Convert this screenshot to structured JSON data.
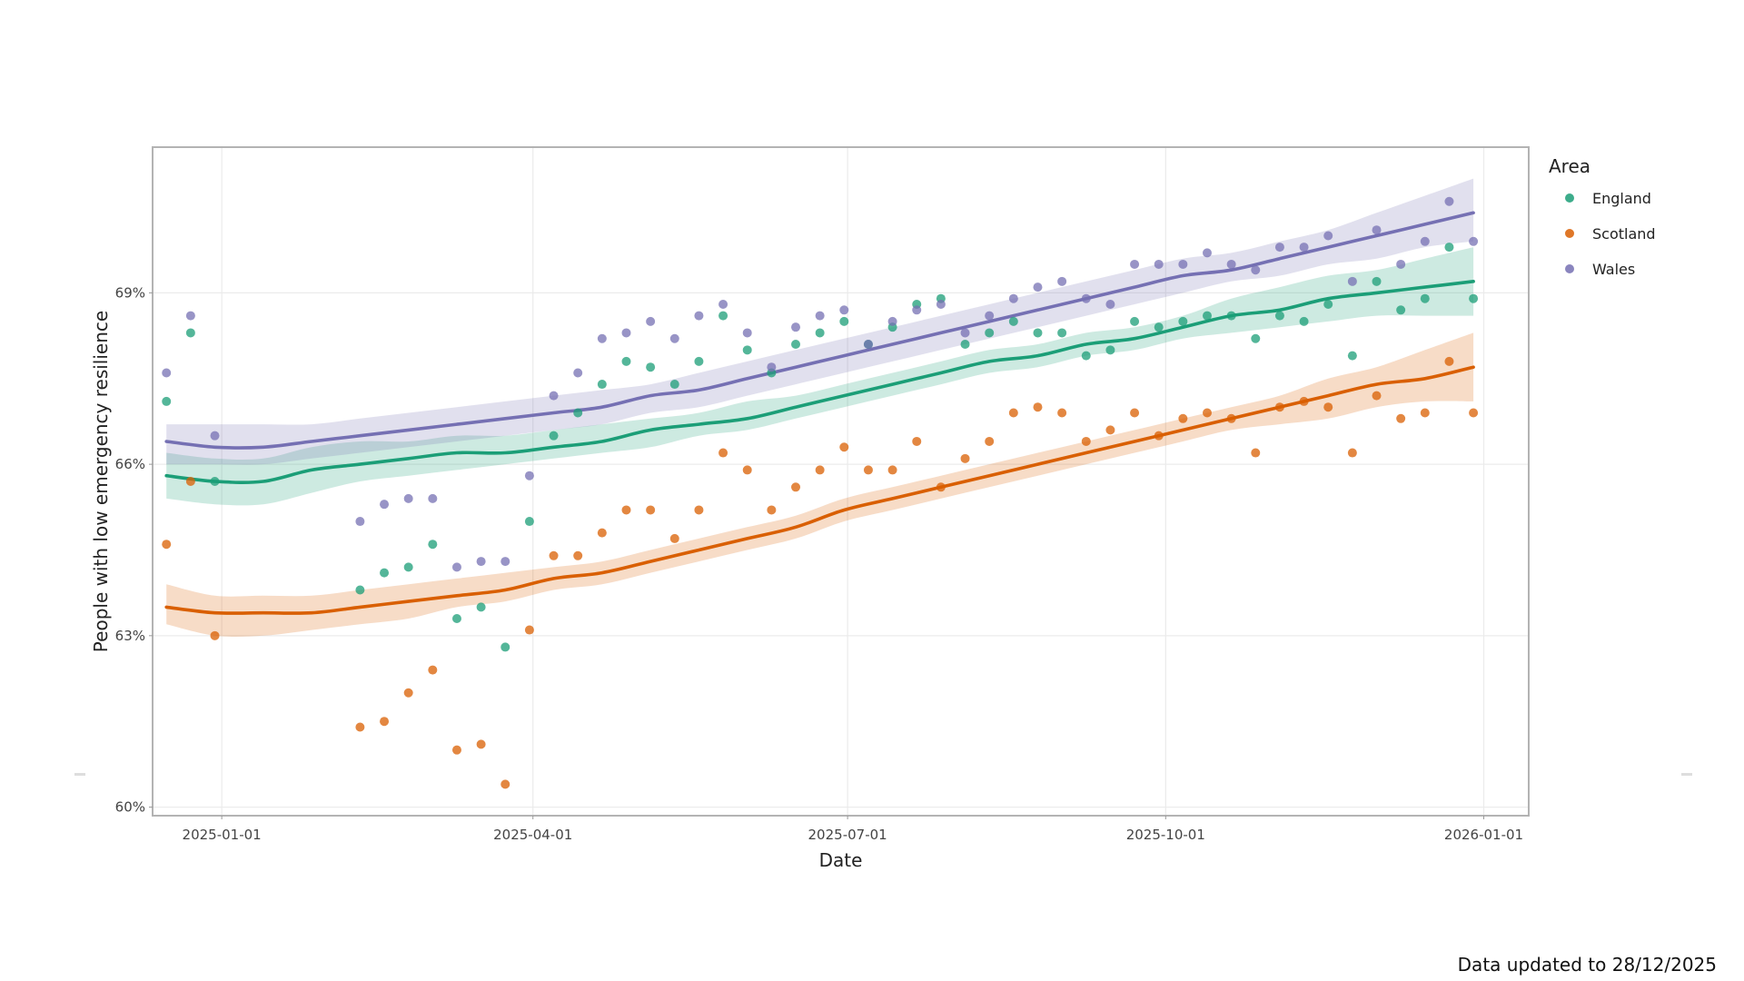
{
  "footnote": "Data updated to 28/12/2025",
  "chart_data": {
    "type": "scatter",
    "xlabel": "Date",
    "ylabel": "People with low emergency resilience",
    "legend": {
      "title": "Area",
      "position": "right"
    },
    "grid": true,
    "x_range": [
      "2024-12-12",
      "2026-01-14"
    ],
    "y_range": [
      59.85,
      71.55
    ],
    "y_ticks": [
      60,
      63,
      66,
      69
    ],
    "y_tick_labels": [
      "60%",
      "63%",
      "66%",
      "69%"
    ],
    "x_ticks": [
      "2025-01-01",
      "2025-04-01",
      "2025-07-01",
      "2025-10-01",
      "2026-01-01"
    ],
    "x_tick_labels": [
      "2025-01-01",
      "2025-04-01",
      "2025-07-01",
      "2025-10-01",
      "2026-01-01"
    ],
    "x_dates": [
      "2024-12-16",
      "2024-12-23",
      "2024-12-30",
      "2025-02-10",
      "2025-02-17",
      "2025-02-24",
      "2025-03-03",
      "2025-03-10",
      "2025-03-17",
      "2025-03-24",
      "2025-03-31",
      "2025-04-07",
      "2025-04-14",
      "2025-04-21",
      "2025-04-28",
      "2025-05-05",
      "2025-05-12",
      "2025-05-19",
      "2025-05-26",
      "2025-06-02",
      "2025-06-09",
      "2025-06-16",
      "2025-06-23",
      "2025-06-30",
      "2025-07-07",
      "2025-07-14",
      "2025-07-21",
      "2025-07-28",
      "2025-08-04",
      "2025-08-11",
      "2025-08-18",
      "2025-08-25",
      "2025-09-01",
      "2025-09-08",
      "2025-09-15",
      "2025-09-22",
      "2025-09-29",
      "2025-10-06",
      "2025-10-13",
      "2025-10-20",
      "2025-10-27",
      "2025-11-03",
      "2025-11-10",
      "2025-11-17",
      "2025-11-24",
      "2025-12-01",
      "2025-12-08",
      "2025-12-15",
      "2025-12-22",
      "2025-12-29"
    ],
    "series": [
      {
        "name": "England",
        "color": "#1b9e77",
        "points": [
          67.1,
          68.3,
          65.7,
          63.8,
          64.1,
          64.2,
          64.6,
          63.3,
          63.5,
          62.8,
          65.0,
          66.5,
          66.9,
          67.4,
          67.8,
          67.7,
          67.4,
          67.8,
          68.6,
          68.0,
          67.6,
          68.1,
          68.3,
          68.5,
          68.1,
          68.4,
          68.8,
          68.9,
          68.1,
          68.3,
          68.5,
          68.3,
          68.3,
          67.9,
          68.0,
          68.5,
          68.4,
          68.5,
          68.6,
          68.6,
          68.2,
          68.6,
          68.5,
          68.8,
          67.9,
          69.2,
          68.7,
          68.9,
          69.8,
          68.9
        ],
        "trend": [
          65.8,
          65.7,
          65.7,
          65.9,
          66.0,
          66.1,
          66.2,
          66.2,
          66.3,
          66.4,
          66.6,
          66.7,
          66.8,
          67.0,
          67.2,
          67.4,
          67.6,
          67.8,
          67.9,
          68.1,
          68.2,
          68.4,
          68.6,
          68.7,
          68.9,
          69.0,
          69.1,
          69.2
        ],
        "band_lower": [
          65.4,
          65.3,
          65.3,
          65.5,
          65.7,
          65.8,
          65.9,
          66.0,
          66.1,
          66.2,
          66.3,
          66.5,
          66.6,
          66.8,
          67.0,
          67.2,
          67.4,
          67.6,
          67.7,
          67.9,
          68.0,
          68.2,
          68.3,
          68.4,
          68.5,
          68.6,
          68.6,
          68.6
        ],
        "band_upper": [
          66.2,
          66.1,
          66.1,
          66.3,
          66.4,
          66.4,
          66.5,
          66.5,
          66.6,
          66.7,
          66.8,
          66.9,
          67.1,
          67.2,
          67.4,
          67.6,
          67.8,
          68.0,
          68.1,
          68.3,
          68.4,
          68.6,
          68.9,
          69.1,
          69.3,
          69.4,
          69.6,
          69.8
        ]
      },
      {
        "name": "Scotland",
        "color": "#d95f02",
        "points": [
          64.6,
          65.7,
          63.0,
          61.4,
          61.5,
          62.0,
          62.4,
          61.0,
          61.1,
          60.4,
          63.1,
          64.4,
          64.4,
          64.8,
          65.2,
          65.2,
          64.7,
          65.2,
          66.2,
          65.9,
          65.2,
          65.6,
          65.9,
          66.3,
          65.9,
          65.9,
          66.4,
          65.6,
          66.1,
          66.4,
          66.9,
          67.0,
          66.9,
          66.4,
          66.6,
          66.9,
          66.5,
          66.8,
          66.9,
          66.8,
          66.2,
          67.0,
          67.1,
          67.0,
          66.2,
          67.2,
          66.8,
          66.9,
          67.8,
          66.9
        ],
        "trend": [
          63.5,
          63.4,
          63.4,
          63.4,
          63.5,
          63.6,
          63.7,
          63.8,
          64.0,
          64.1,
          64.3,
          64.5,
          64.7,
          64.9,
          65.2,
          65.4,
          65.6,
          65.8,
          66.0,
          66.2,
          66.4,
          66.6,
          66.8,
          67.0,
          67.2,
          67.4,
          67.5,
          67.7
        ],
        "band_lower": [
          63.2,
          63.0,
          63.0,
          63.1,
          63.2,
          63.3,
          63.5,
          63.6,
          63.8,
          63.9,
          64.1,
          64.3,
          64.5,
          64.7,
          65.0,
          65.2,
          65.4,
          65.6,
          65.8,
          66.0,
          66.2,
          66.4,
          66.6,
          66.7,
          66.8,
          67.0,
          67.1,
          67.1
        ],
        "band_upper": [
          63.9,
          63.7,
          63.7,
          63.7,
          63.8,
          63.9,
          64.0,
          64.1,
          64.2,
          64.3,
          64.5,
          64.7,
          64.9,
          65.1,
          65.4,
          65.6,
          65.8,
          66.0,
          66.2,
          66.4,
          66.6,
          66.8,
          67.0,
          67.2,
          67.5,
          67.7,
          68.0,
          68.3
        ]
      },
      {
        "name": "Wales",
        "color": "#7570b3",
        "points": [
          67.6,
          68.6,
          66.5,
          65.0,
          65.3,
          65.4,
          65.4,
          64.2,
          64.3,
          64.3,
          65.8,
          67.2,
          67.6,
          68.2,
          68.3,
          68.5,
          68.2,
          68.6,
          68.8,
          68.3,
          67.7,
          68.4,
          68.6,
          68.7,
          68.1,
          68.5,
          68.7,
          68.8,
          68.3,
          68.6,
          68.9,
          69.1,
          69.2,
          68.9,
          68.8,
          69.5,
          69.5,
          69.5,
          69.7,
          69.5,
          69.4,
          69.8,
          69.8,
          70.0,
          69.2,
          70.1,
          69.5,
          69.9,
          70.6,
          69.9
        ],
        "trend": [
          66.4,
          66.3,
          66.3,
          66.4,
          66.5,
          66.6,
          66.7,
          66.8,
          66.9,
          67.0,
          67.2,
          67.3,
          67.5,
          67.7,
          67.9,
          68.1,
          68.3,
          68.5,
          68.7,
          68.9,
          69.1,
          69.3,
          69.4,
          69.6,
          69.8,
          70.0,
          70.2,
          70.4
        ],
        "band_lower": [
          66.0,
          66.0,
          66.0,
          66.1,
          66.2,
          66.3,
          66.4,
          66.5,
          66.6,
          66.7,
          66.9,
          67.0,
          67.2,
          67.4,
          67.6,
          67.8,
          68.0,
          68.2,
          68.4,
          68.6,
          68.8,
          69.0,
          69.2,
          69.3,
          69.5,
          69.6,
          69.8,
          69.9
        ],
        "band_upper": [
          66.7,
          66.7,
          66.7,
          66.7,
          66.8,
          66.9,
          67.0,
          67.1,
          67.2,
          67.3,
          67.4,
          67.6,
          67.8,
          68.0,
          68.2,
          68.4,
          68.6,
          68.8,
          69.0,
          69.2,
          69.4,
          69.6,
          69.7,
          69.9,
          70.1,
          70.4,
          70.7,
          71.0
        ]
      }
    ]
  }
}
